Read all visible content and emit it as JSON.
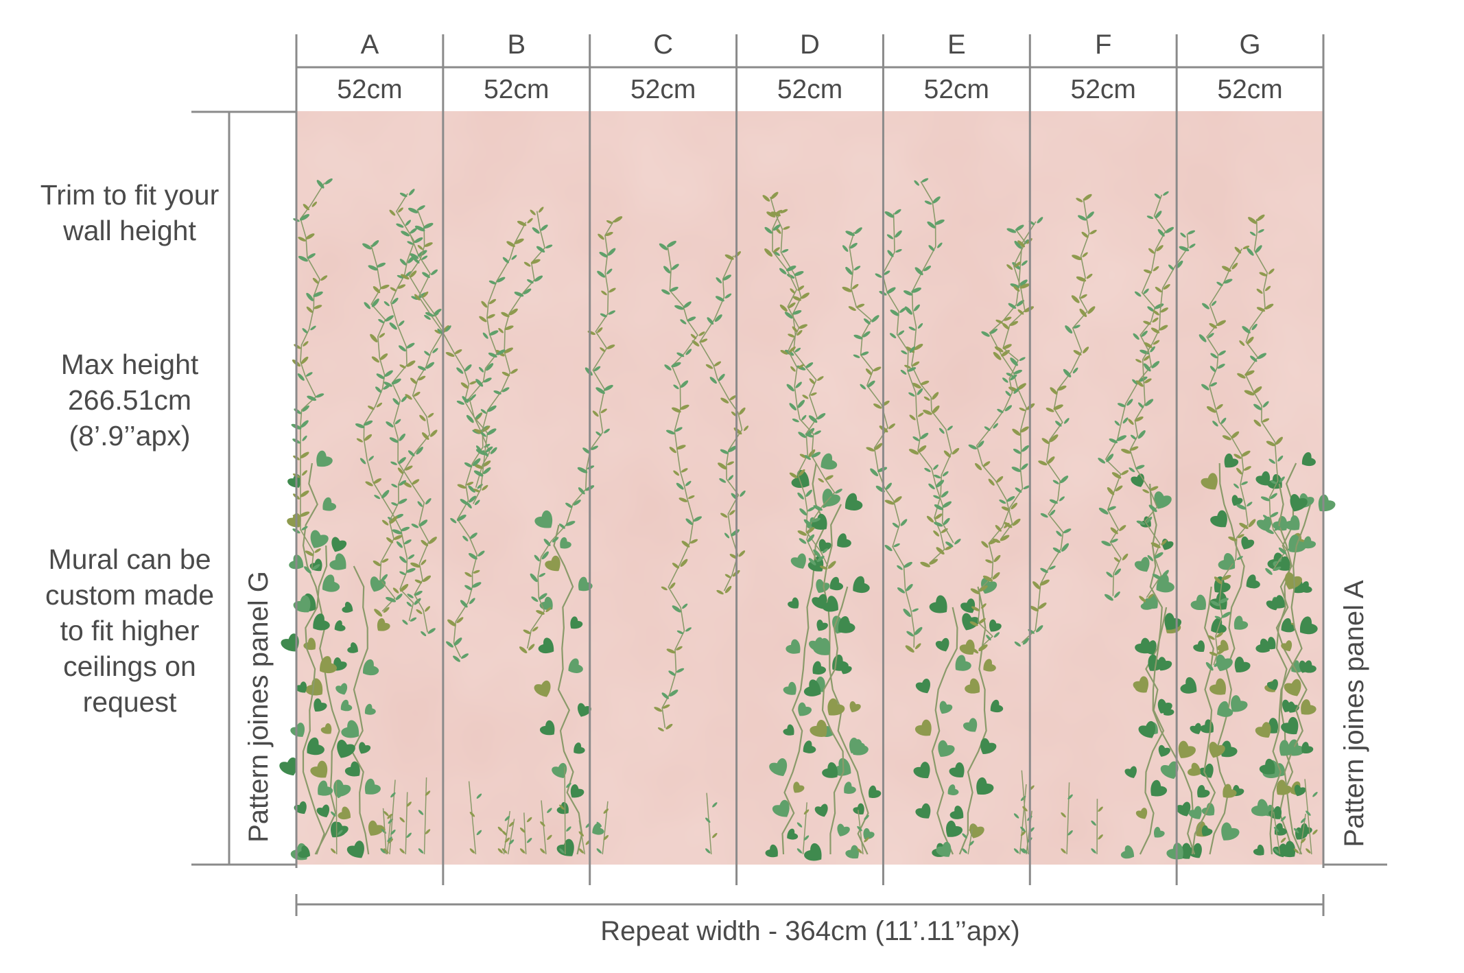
{
  "panels": [
    {
      "letter": "A",
      "width": "52cm"
    },
    {
      "letter": "B",
      "width": "52cm"
    },
    {
      "letter": "C",
      "width": "52cm"
    },
    {
      "letter": "D",
      "width": "52cm"
    },
    {
      "letter": "E",
      "width": "52cm"
    },
    {
      "letter": "F",
      "width": "52cm"
    },
    {
      "letter": "G",
      "width": "52cm"
    }
  ],
  "notes": {
    "trim": "Trim to fit your\nwall height",
    "max_height": "Max height\n266.51cm\n(8’.9’’apx)",
    "custom": "Mural can be\ncustom made\nto fit higher\nceilings on\nrequest"
  },
  "side_labels": {
    "left": "Pattern joines panel G",
    "right": "Pattern joines panel A"
  },
  "repeat_width": "Repeat width - 364cm  (11’.11’’apx)",
  "colors": {
    "mural_background": "#ecc9c2",
    "guide_lines": "#8a8a8a",
    "leaf_dark": "#3f8a4e",
    "leaf_mid": "#5fa06a",
    "leaf_olive": "#8e9a4e",
    "stem": "#8a9a6a"
  }
}
